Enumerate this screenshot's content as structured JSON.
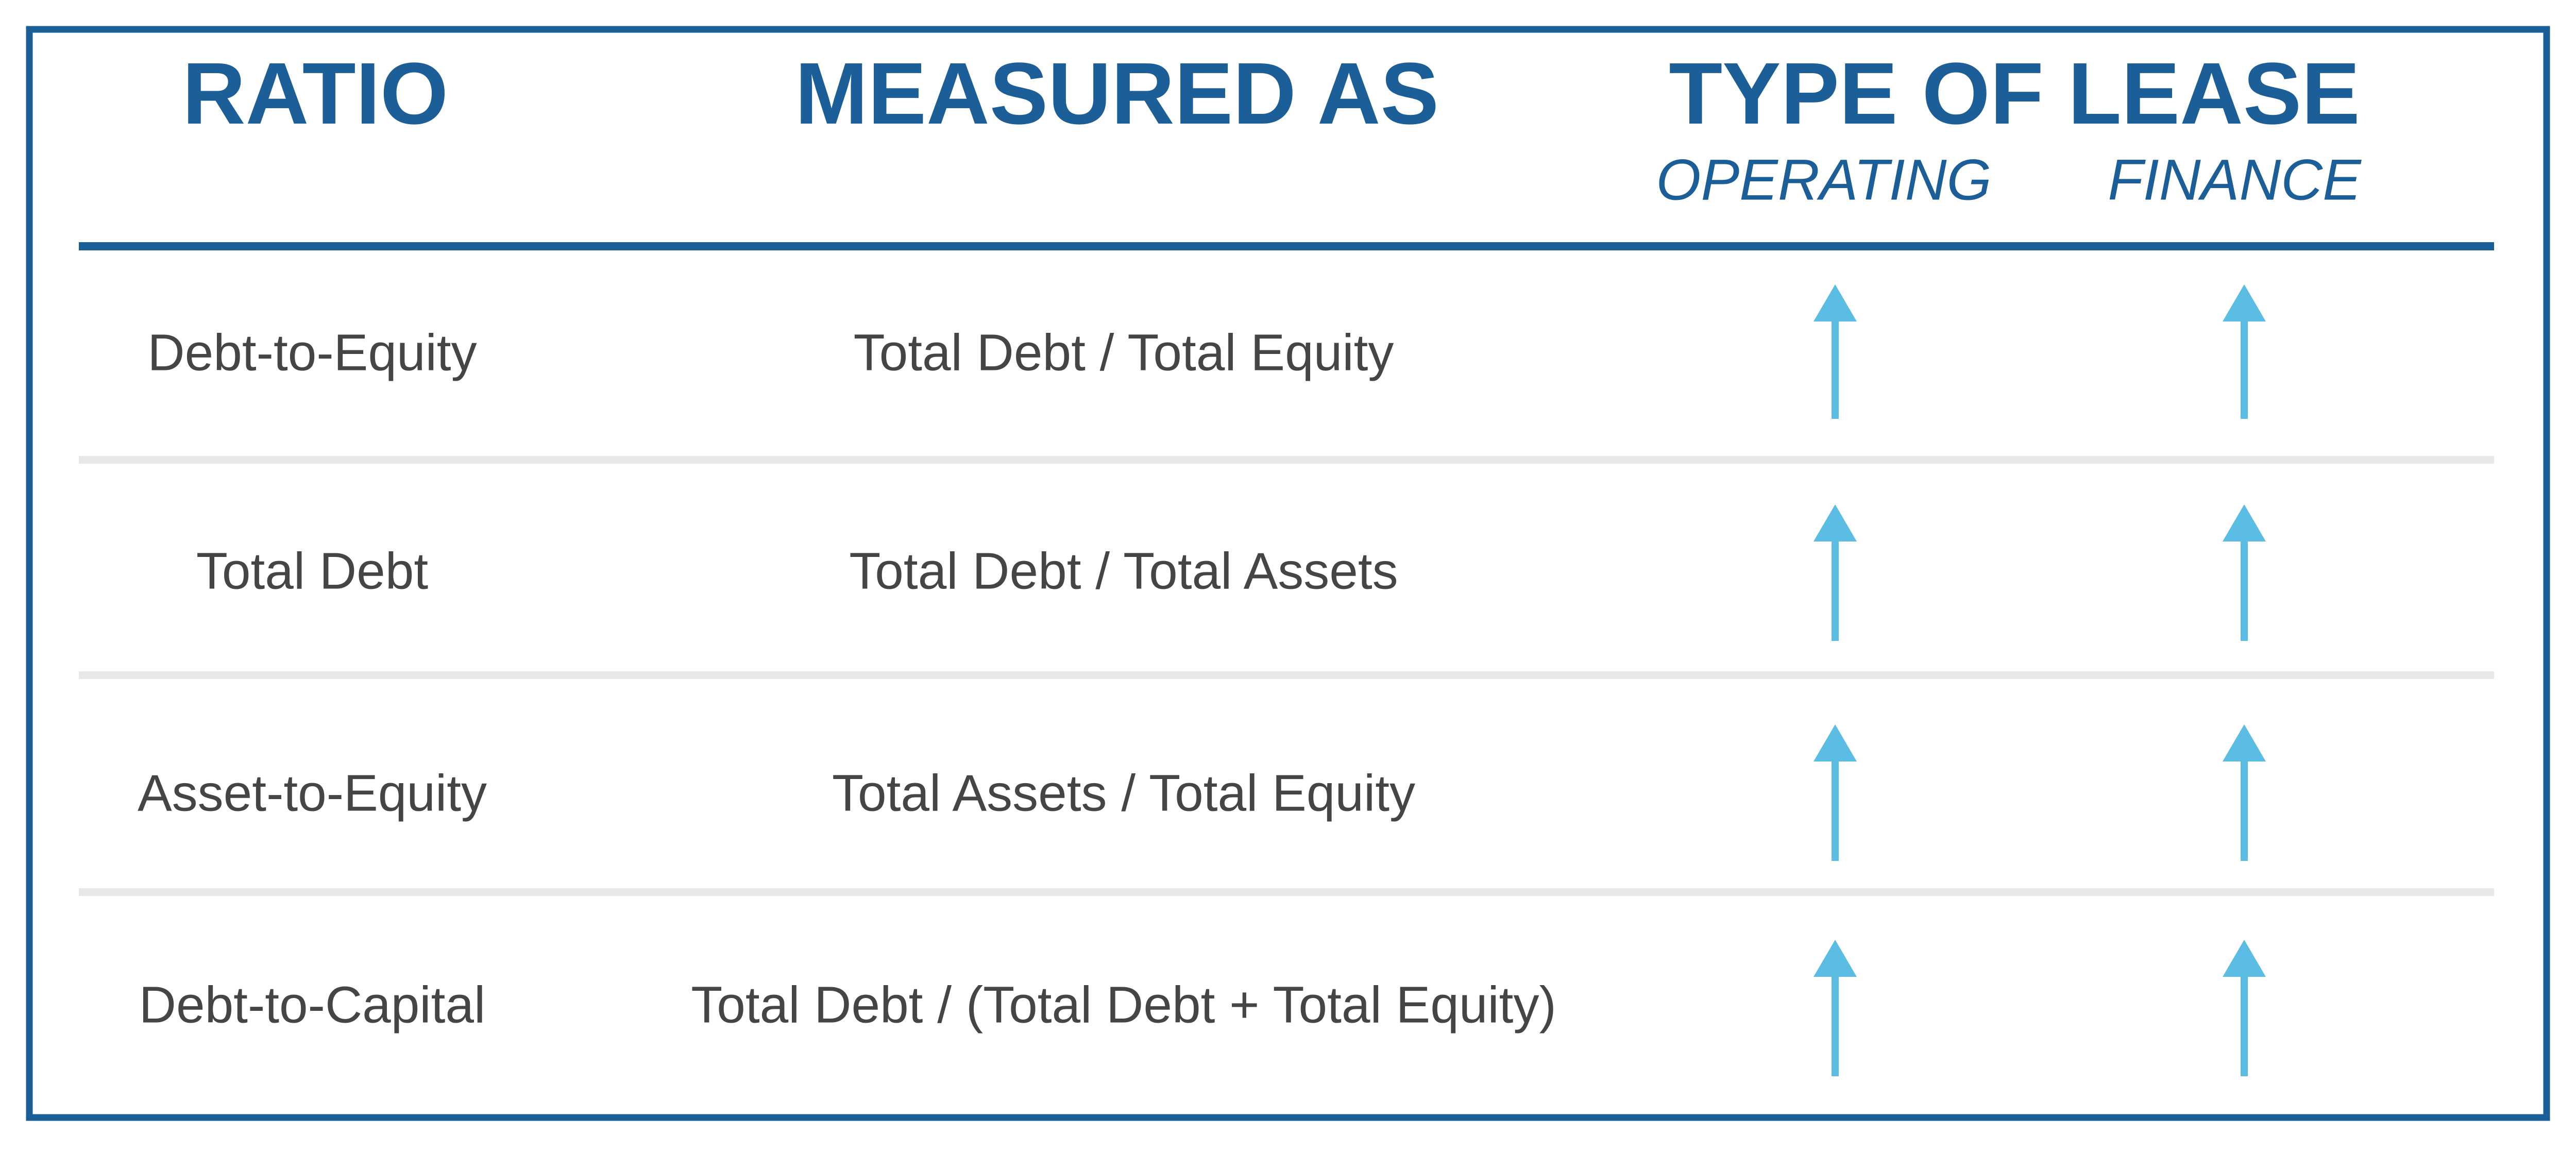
{
  "header": {
    "columns": [
      "RATIO",
      "MEASURED AS",
      "TYPE OF LEASE"
    ],
    "subcolumns": [
      "OPERATING",
      "FINANCE"
    ]
  },
  "table": {
    "rows": [
      [
        "Debt-to-Equity",
        "Total Debt / Total Equity"
      ],
      [
        "Total Debt",
        "Total Debt / Total Assets"
      ],
      [
        "Asset-to-Equity",
        "Total Assets / Total Equity"
      ],
      [
        "Debt-to-Capital",
        "Total Debt / (Total Debt + Total Equity)"
      ]
    ]
  }
}
